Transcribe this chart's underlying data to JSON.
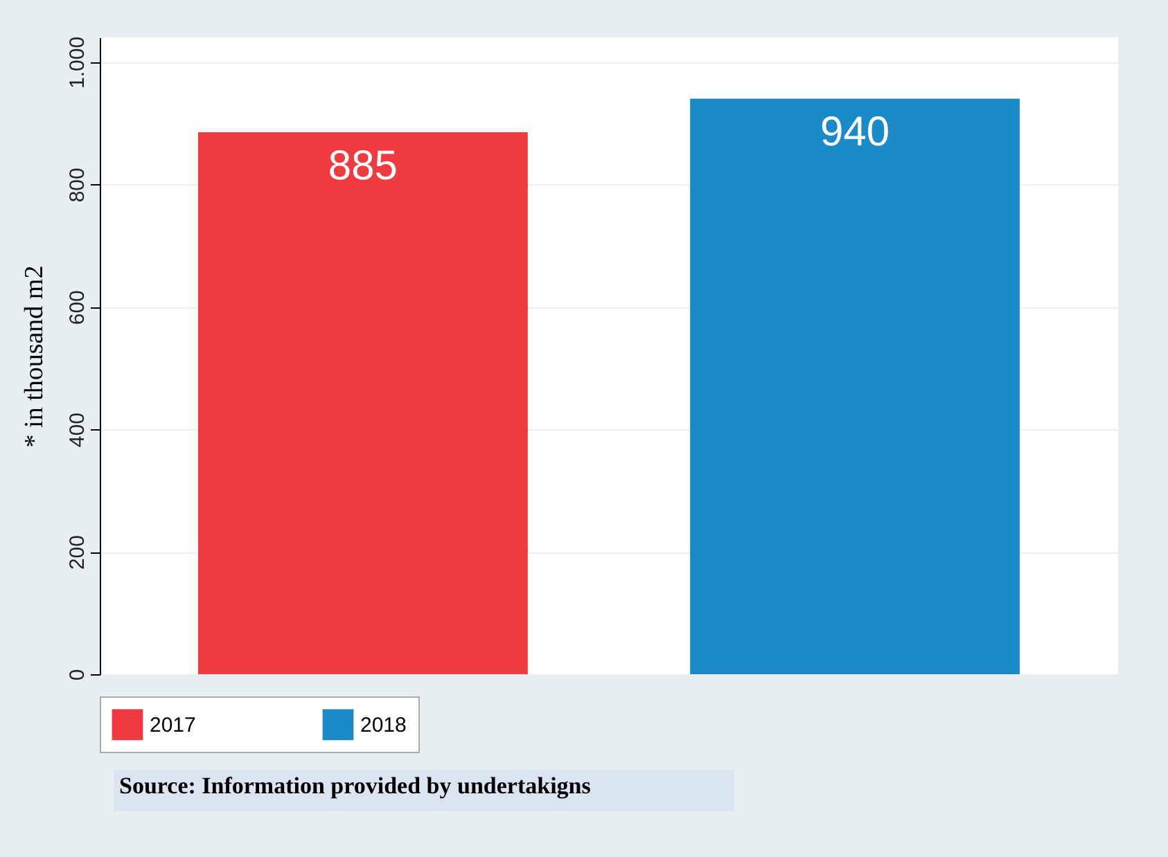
{
  "chart_data": {
    "type": "bar",
    "ylabel": "* in thousand m2",
    "categories": [
      null,
      null
    ],
    "series": [
      {
        "name": "2017",
        "color": "#ef3a40",
        "values": [
          885,
          null
        ]
      },
      {
        "name": "2018",
        "color": "#1a8ac9",
        "values": [
          null,
          940
        ]
      }
    ],
    "ylim": [
      0,
      1040
    ],
    "yticks": [
      0,
      200,
      400,
      600,
      800,
      {
        "value": 1000,
        "label": "1.000"
      }
    ],
    "grid": "y",
    "legend": "bottom",
    "data_labels": true,
    "annotations": [
      "Source: Information provided by undertakigns"
    ]
  }
}
